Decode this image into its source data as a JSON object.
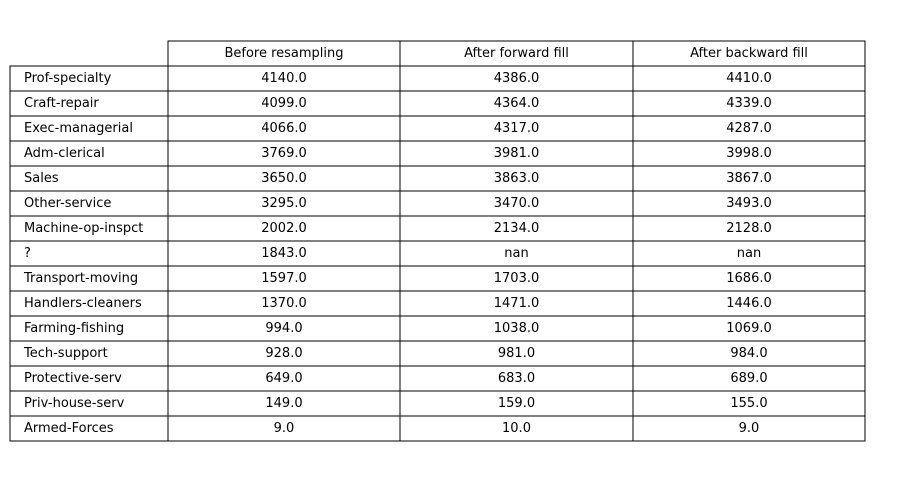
{
  "chart_data": {
    "type": "table",
    "columns": [
      "Before resampling",
      "After forward fill",
      "After backward fill"
    ],
    "rows": [
      {
        "label": " Prof-specialty",
        "values": [
          "4140.0",
          "4386.0",
          "4410.0"
        ]
      },
      {
        "label": " Craft-repair",
        "values": [
          "4099.0",
          "4364.0",
          "4339.0"
        ]
      },
      {
        "label": " Exec-managerial",
        "values": [
          "4066.0",
          "4317.0",
          "4287.0"
        ]
      },
      {
        "label": " Adm-clerical",
        "values": [
          "3769.0",
          "3981.0",
          "3998.0"
        ]
      },
      {
        "label": " Sales",
        "values": [
          "3650.0",
          "3863.0",
          "3867.0"
        ]
      },
      {
        "label": " Other-service",
        "values": [
          "3295.0",
          "3470.0",
          "3493.0"
        ]
      },
      {
        "label": " Machine-op-inspct",
        "values": [
          "2002.0",
          "2134.0",
          "2128.0"
        ]
      },
      {
        "label": " ?",
        "values": [
          "1843.0",
          "nan",
          "nan"
        ]
      },
      {
        "label": " Transport-moving",
        "values": [
          "1597.0",
          "1703.0",
          "1686.0"
        ]
      },
      {
        "label": " Handlers-cleaners",
        "values": [
          "1370.0",
          "1471.0",
          "1446.0"
        ]
      },
      {
        "label": " Farming-fishing",
        "values": [
          "994.0",
          "1038.0",
          "1069.0"
        ]
      },
      {
        "label": " Tech-support",
        "values": [
          "928.0",
          "981.0",
          "984.0"
        ]
      },
      {
        "label": " Protective-serv",
        "values": [
          "649.0",
          "683.0",
          "689.0"
        ]
      },
      {
        "label": " Priv-house-serv",
        "values": [
          "149.0",
          "159.0",
          "155.0"
        ]
      },
      {
        "label": " Armed-Forces",
        "values": [
          "9.0",
          "10.0",
          "9.0"
        ]
      }
    ]
  }
}
